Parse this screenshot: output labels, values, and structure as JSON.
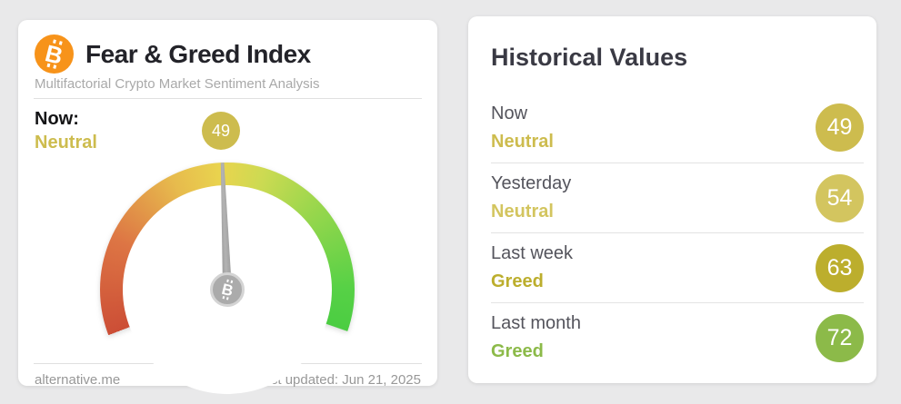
{
  "page": {
    "background": "#e9e9ea"
  },
  "gauge": {
    "value": 49,
    "min": 0,
    "max": 100,
    "sweep_deg": 220,
    "badge_value": "49",
    "badge_color": "#cdbc4e",
    "needle_color": "#a5a5a5",
    "scale_colors": [
      "#cc4e36 0deg",
      "#dd7544 45deg",
      "#e7bb4d 85deg",
      "#e9d44e 108deg",
      "#cdda52 128deg",
      "#9ed74d 155deg",
      "#57d146 200deg",
      "#4bcd42 220deg"
    ]
  },
  "fear_greed_card": {
    "title": "Fear & Greed Index",
    "subtitle": "Multifactorial Crypto Market Sentiment Analysis",
    "bitcoin_orange": "#f7931a",
    "now_label": "Now:",
    "now_classification": "Neutral",
    "now_color": "#cdbc4e",
    "footer": {
      "site": "alternative.me",
      "last_updated": "Last updated: Jun 21, 2025"
    }
  },
  "historical_card": {
    "title": "Historical Values",
    "rows": [
      {
        "label": "Now",
        "classification": "Neutral",
        "value": "49",
        "color": "#cdbc4e"
      },
      {
        "label": "Yesterday",
        "classification": "Neutral",
        "value": "54",
        "color": "#d3c55f"
      },
      {
        "label": "Last week",
        "classification": "Greed",
        "value": "63",
        "color": "#bcae2d"
      },
      {
        "label": "Last month",
        "classification": "Greed",
        "value": "72",
        "color": "#8cba49"
      }
    ]
  },
  "chart_data": {
    "type": "gauge",
    "title": "Fear & Greed Index",
    "value": 49,
    "range": [
      0,
      100
    ],
    "classification": "Neutral",
    "history": [
      {
        "label": "Now",
        "value": 49,
        "classification": "Neutral"
      },
      {
        "label": "Yesterday",
        "value": 54,
        "classification": "Neutral"
      },
      {
        "label": "Last week",
        "value": 63,
        "classification": "Greed"
      },
      {
        "label": "Last month",
        "value": 72,
        "classification": "Greed"
      }
    ]
  }
}
